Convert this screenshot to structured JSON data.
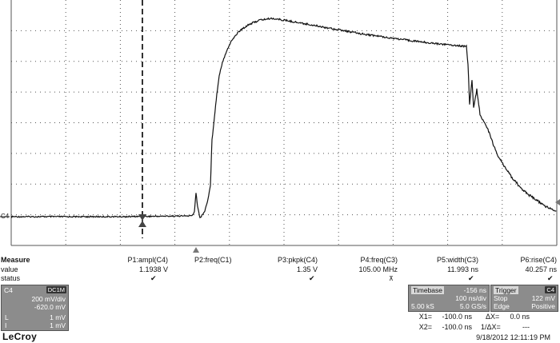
{
  "scope": {
    "channel_marker": "C4",
    "brand": "LeCroy",
    "timestamp": "9/18/2012 12:11:19 PM",
    "colors": {
      "trace": "#111111",
      "grid": "#555555",
      "cursor": "#000000",
      "panel": "#8c8c8c"
    }
  },
  "measure": {
    "header": "Measure",
    "row_labels": {
      "value": "value",
      "status": "status"
    },
    "params": [
      {
        "name": "P1:ampl(C4)",
        "value": "1.1938 V",
        "status": "check"
      },
      {
        "name": "P2:freq(C1)",
        "value": "",
        "status": ""
      },
      {
        "name": "P3:pkpk(C4)",
        "value": "1.35 V",
        "status": "check"
      },
      {
        "name": "P4:freq(C3)",
        "value": "105.00 MHz",
        "status": "warn"
      },
      {
        "name": "P5:width(C3)",
        "value": "11.993 ns",
        "status": "check"
      },
      {
        "name": "P6:rise(C4)",
        "value": "40.257 ns",
        "status": "check"
      }
    ]
  },
  "channel_panel": {
    "title": "C4",
    "badge": "DC1M",
    "vdiv": "200 mV/div",
    "offset": "-620.0 mV",
    "row1_label": "L",
    "row1_value": "1 mV",
    "row2_label": "I",
    "row2_value": "1 mV"
  },
  "timebase_panel": {
    "title": "Timebase",
    "delay": "-156 ns",
    "tdiv": "100 ns/div",
    "samples": "5.00 kS",
    "rate": "5.0 GS/s"
  },
  "trigger_panel": {
    "title": "Trigger",
    "badge": "C4",
    "mode": "Stop",
    "level": "122 mV",
    "type": "Edge",
    "slope": "Positive"
  },
  "cursors": {
    "x1_label": "X1=",
    "x1_value": "-100.0 ns",
    "dx_label": "ΔX=",
    "dx_value": "0.0 ns",
    "x2_label": "X2=",
    "x2_value": "-100.0 ns",
    "inv_dx_label": "1/ΔX=",
    "inv_dx_value": "---"
  }
}
